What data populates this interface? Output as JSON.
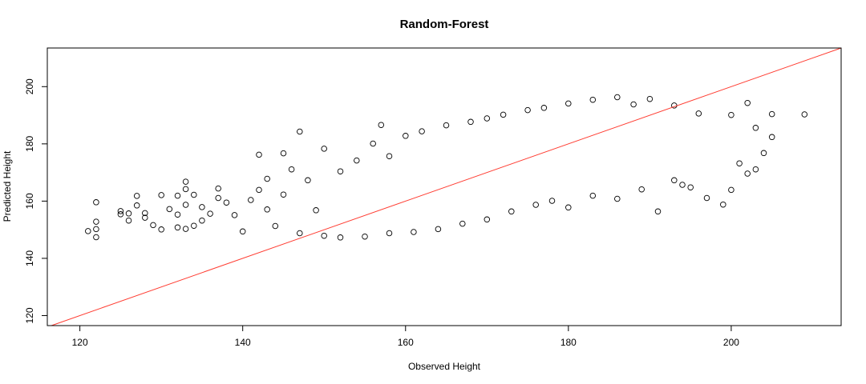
{
  "chart_data": {
    "type": "scatter",
    "title": "Random-Forest",
    "xlabel": "Observed Height",
    "ylabel": "Predicted Height",
    "xlim": [
      116,
      213.5
    ],
    "ylim": [
      116.5,
      213.5
    ],
    "xticks": [
      120,
      140,
      160,
      180,
      200
    ],
    "yticks": [
      120,
      140,
      160,
      180,
      200
    ],
    "grid": false,
    "legend": "none",
    "point_style": "open-circle",
    "point_color": "#000000",
    "reference_line": {
      "slope": 1,
      "intercept": 0,
      "color": "#ff3b30"
    },
    "series": [
      {
        "points": [
          [
            121,
            149.5
          ],
          [
            122,
            147.4
          ],
          [
            122,
            150.2
          ],
          [
            122,
            152.8
          ],
          [
            122,
            159.6
          ],
          [
            125,
            156.5
          ],
          [
            125,
            155.4
          ],
          [
            126,
            153.2
          ],
          [
            126,
            155.7
          ],
          [
            127,
            158.5
          ],
          [
            127,
            161.8
          ],
          [
            128,
            154.2
          ],
          [
            128,
            155.8
          ],
          [
            129,
            151.6
          ],
          [
            130,
            150.1
          ],
          [
            130,
            162.1
          ],
          [
            131,
            157.2
          ],
          [
            132,
            150.8
          ],
          [
            132,
            155.3
          ],
          [
            132,
            161.9
          ],
          [
            133,
            150.3
          ],
          [
            133,
            158.7
          ],
          [
            133,
            164.2
          ],
          [
            133,
            166.8
          ],
          [
            134,
            151.4
          ],
          [
            134,
            162.2
          ],
          [
            135,
            153.2
          ],
          [
            135,
            157.9
          ],
          [
            136,
            155.6
          ],
          [
            137,
            161.1
          ],
          [
            137,
            164.4
          ],
          [
            138,
            159.5
          ],
          [
            139,
            155.1
          ],
          [
            140,
            149.4
          ],
          [
            141,
            160.4
          ],
          [
            142,
            163.9
          ],
          [
            142,
            176.2
          ],
          [
            143,
            157.1
          ],
          [
            143,
            167.8
          ],
          [
            144,
            151.3
          ],
          [
            145,
            162.3
          ],
          [
            145,
            176.7
          ],
          [
            146,
            171.1
          ],
          [
            147,
            184.3
          ],
          [
            148,
            167.3
          ],
          [
            149,
            156.8
          ],
          [
            150,
            178.3
          ],
          [
            152,
            170.4
          ],
          [
            154,
            174.2
          ],
          [
            156,
            180.1
          ],
          [
            157,
            186.6
          ],
          [
            158,
            175.7
          ],
          [
            160,
            182.8
          ],
          [
            162,
            184.4
          ],
          [
            165,
            186.5
          ],
          [
            168,
            187.7
          ],
          [
            170,
            188.9
          ],
          [
            172,
            190.2
          ],
          [
            175,
            191.8
          ],
          [
            177,
            192.6
          ],
          [
            180,
            194.1
          ],
          [
            183,
            195.4
          ],
          [
            186,
            196.3
          ],
          [
            188,
            193.8
          ],
          [
            190,
            195.7
          ],
          [
            193,
            193.4
          ],
          [
            196,
            190.6
          ],
          [
            200,
            190.1
          ],
          [
            202,
            194.3
          ],
          [
            205,
            190.4
          ],
          [
            209,
            190.3
          ],
          [
            191,
            156.4
          ],
          [
            199,
            158.8
          ],
          [
            200,
            163.9
          ],
          [
            197,
            161.1
          ],
          [
            195,
            164.8
          ],
          [
            194,
            165.7
          ],
          [
            193,
            167.3
          ],
          [
            202,
            169.6
          ],
          [
            203,
            171.1
          ],
          [
            204,
            176.8
          ],
          [
            205,
            182.4
          ],
          [
            203,
            185.6
          ],
          [
            201,
            173.2
          ],
          [
            189,
            164.1
          ],
          [
            186,
            160.8
          ],
          [
            183,
            161.9
          ],
          [
            180,
            157.8
          ],
          [
            178,
            160.1
          ],
          [
            176,
            158.7
          ],
          [
            173,
            156.4
          ],
          [
            170,
            153.6
          ],
          [
            167,
            152.1
          ],
          [
            164,
            150.2
          ],
          [
            161,
            149.2
          ],
          [
            158,
            148.8
          ],
          [
            155,
            147.6
          ],
          [
            152,
            147.3
          ],
          [
            150,
            147.9
          ],
          [
            147,
            148.8
          ]
        ]
      }
    ]
  }
}
